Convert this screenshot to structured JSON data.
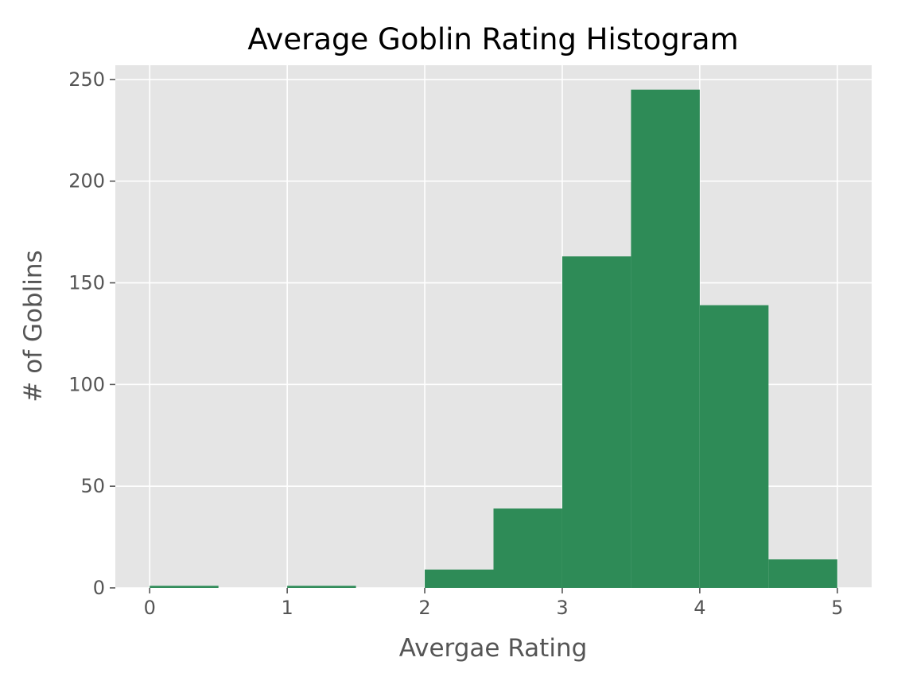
{
  "chart_data": {
    "type": "bar",
    "title": "Average Goblin Rating Histogram",
    "xlabel": "Avergae Rating",
    "ylabel": "# of Goblins",
    "xlim": [
      -0.25,
      5.25
    ],
    "ylim": [
      0,
      257
    ],
    "x_ticks": [
      0,
      1,
      2,
      3,
      4,
      5
    ],
    "y_ticks": [
      0,
      50,
      100,
      150,
      200,
      250
    ],
    "grid": true,
    "bin_width": 0.5,
    "bins": [
      {
        "x0": 0.0,
        "x1": 0.5,
        "count": 1
      },
      {
        "x0": 0.5,
        "x1": 1.0,
        "count": 0
      },
      {
        "x0": 1.0,
        "x1": 1.5,
        "count": 1
      },
      {
        "x0": 1.5,
        "x1": 2.0,
        "count": 0
      },
      {
        "x0": 2.0,
        "x1": 2.5,
        "count": 9
      },
      {
        "x0": 2.5,
        "x1": 3.0,
        "count": 39
      },
      {
        "x0": 3.0,
        "x1": 3.5,
        "count": 163
      },
      {
        "x0": 3.5,
        "x1": 4.0,
        "count": 245
      },
      {
        "x0": 4.0,
        "x1": 4.5,
        "count": 139
      },
      {
        "x0": 4.5,
        "x1": 5.0,
        "count": 14
      }
    ],
    "colors": {
      "bar": "#2e8b57",
      "plot_background": "#e5e5e5",
      "grid": "#ffffff",
      "tick": "#555555"
    }
  }
}
